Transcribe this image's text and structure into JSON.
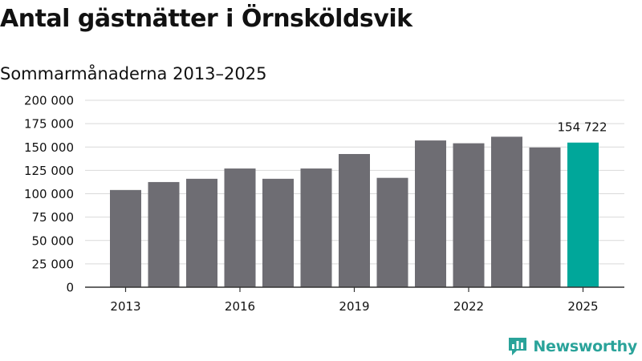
{
  "header": {
    "title": "Antal gästnätter i Örnsköldsvik",
    "subtitle": "Sommarmånaderna 2013–2025"
  },
  "brand": {
    "name": "Newsworthy"
  },
  "colors": {
    "bar": "#6e6d73",
    "highlight": "#00a79a",
    "grid": "#d9d9d9",
    "brand": "#2aa39a"
  },
  "chart_data": {
    "type": "bar",
    "categories": [
      "2013",
      "2014",
      "2015",
      "2016",
      "2017",
      "2018",
      "2019",
      "2020",
      "2021",
      "2022",
      "2023",
      "2024",
      "2025"
    ],
    "values": [
      104000,
      112500,
      116000,
      127000,
      116000,
      127000,
      142500,
      117000,
      157000,
      154000,
      161000,
      149500,
      154722
    ],
    "highlight_index": 12,
    "data_labels": [
      {
        "index": 12,
        "text": "154 722"
      }
    ],
    "x_tick_labels": [
      "2013",
      "2016",
      "2019",
      "2022",
      "2025"
    ],
    "y_tick_labels": [
      "0",
      "25 000",
      "50 000",
      "75 000",
      "100 000",
      "125 000",
      "150 000",
      "175 000",
      "200 000"
    ],
    "y_ticks": [
      0,
      25000,
      50000,
      75000,
      100000,
      125000,
      150000,
      175000,
      200000
    ],
    "ylim": [
      0,
      200000
    ],
    "title": "Antal gästnätter i Örnsköldsvik",
    "subtitle": "Sommarmånaderna 2013–2025",
    "xlabel": "",
    "ylabel": "",
    "grid": true
  }
}
